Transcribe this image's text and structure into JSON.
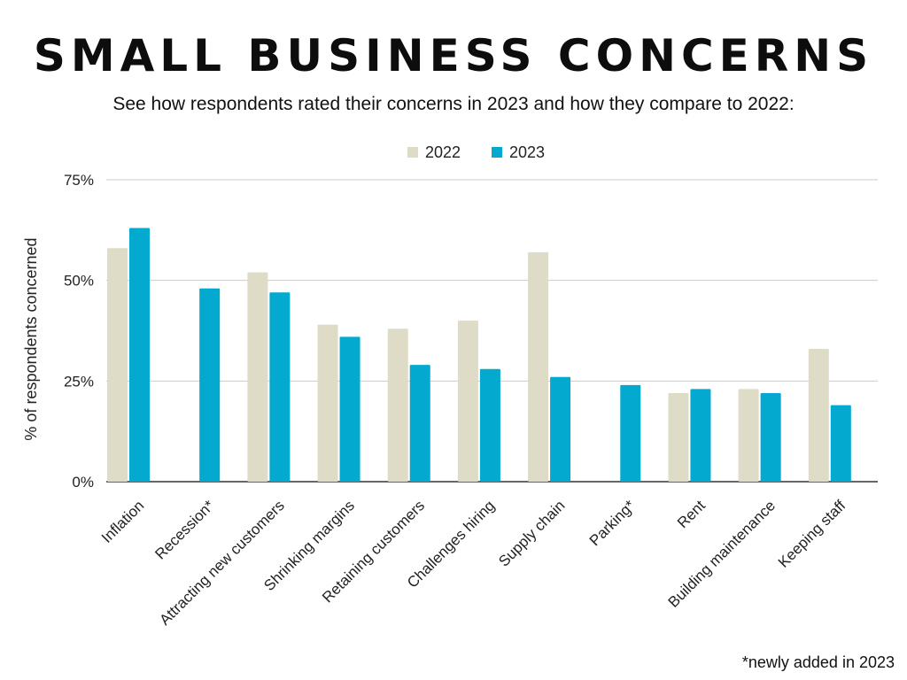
{
  "title": "SMALL BUSINESS CONCERNS",
  "subtitle": "See how respondents rated their concerns in 2023 and how they compare to 2022:",
  "footnote": "*newly added in 2023",
  "colors": {
    "2022": "#dedcc6",
    "2023": "#03a9cf",
    "grid": "#cccccc"
  },
  "chart_data": {
    "type": "bar",
    "ylabel": "% of respondents concerned",
    "xlabel": "",
    "ylim": [
      0,
      75
    ],
    "yticks": [
      0,
      25,
      50,
      75
    ],
    "ytick_labels": [
      "0%",
      "25%",
      "50%",
      "75%"
    ],
    "grid": true,
    "legend_position": "top-center",
    "categories": [
      "Inflation",
      "Recession*",
      "Attracting new customers",
      "Shrinking margins",
      "Retaining customers",
      "Challenges hiring",
      "Supply chain",
      "Parking*",
      "Rent",
      "Building maintenance",
      "Keeping staff"
    ],
    "series": [
      {
        "name": "2022",
        "values": [
          58,
          null,
          52,
          39,
          38,
          40,
          57,
          null,
          22,
          23,
          33
        ]
      },
      {
        "name": "2023",
        "values": [
          63,
          48,
          47,
          36,
          29,
          28,
          26,
          24,
          23,
          22,
          19
        ]
      }
    ]
  }
}
